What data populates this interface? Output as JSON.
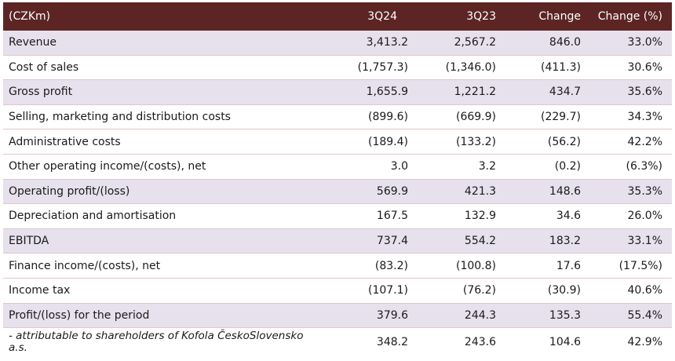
{
  "table": {
    "columns": [
      "(CZKm)",
      "3Q24",
      "3Q23",
      "Change",
      "Change (%)"
    ],
    "rows": [
      {
        "label": "Revenue",
        "q24": "3,413.2",
        "q23": "2,567.2",
        "change": "846.0",
        "change_pct": "33.0%"
      },
      {
        "label": "Cost of sales",
        "q24": "(1,757.3)",
        "q23": "(1,346.0)",
        "change": "(411.3)",
        "change_pct": "30.6%"
      },
      {
        "label": "Gross profit",
        "q24": "1,655.9",
        "q23": "1,221.2",
        "change": "434.7",
        "change_pct": "35.6%"
      },
      {
        "label": "Selling, marketing and distribution costs",
        "q24": "(899.6)",
        "q23": "(669.9)",
        "change": "(229.7)",
        "change_pct": "34.3%"
      },
      {
        "label": "Administrative costs",
        "q24": "(189.4)",
        "q23": "(133.2)",
        "change": "(56.2)",
        "change_pct": "42.2%"
      },
      {
        "label": "Other operating income/(costs), net",
        "q24": "3.0",
        "q23": "3.2",
        "change": "(0.2)",
        "change_pct": "(6.3%)"
      },
      {
        "label": "Operating profit/(loss)",
        "q24": "569.9",
        "q23": "421.3",
        "change": "148.6",
        "change_pct": "35.3%"
      },
      {
        "label": "Depreciation and amortisation",
        "q24": "167.5",
        "q23": "132.9",
        "change": "34.6",
        "change_pct": "26.0%"
      },
      {
        "label": "EBITDA",
        "q24": "737.4",
        "q23": "554.2",
        "change": "183.2",
        "change_pct": "33.1%"
      },
      {
        "label": "Finance income/(costs), net",
        "q24": "(83.2)",
        "q23": "(100.8)",
        "change": "17.6",
        "change_pct": "(17.5%)"
      },
      {
        "label": "Income tax",
        "q24": "(107.1)",
        "q23": "(76.2)",
        "change": "(30.9)",
        "change_pct": "40.6%"
      },
      {
        "label": "Profit/(loss) for the period",
        "q24": "379.6",
        "q23": "244.3",
        "change": "135.3",
        "change_pct": "55.4%"
      },
      {
        "label": "- attributable to shareholders of Kofola ČeskoSlovensko a.s.",
        "q24": "348.2",
        "q23": "243.6",
        "change": "104.6",
        "change_pct": "42.9%"
      }
    ]
  },
  "colors": {
    "header_bg": "#5c2524",
    "shaded_row_bg": "#e6e1ec",
    "row_divider": "#e2c6c6"
  }
}
